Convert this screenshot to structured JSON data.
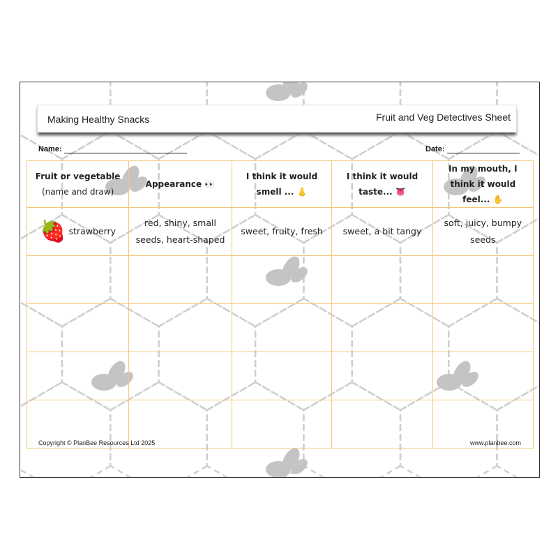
{
  "header": {
    "left_title": "Making Healthy Snacks",
    "right_title": "Fruit and Veg Detectives Sheet"
  },
  "fields": {
    "name_label": "Name:",
    "date_label": "Date:"
  },
  "table": {
    "columns": [
      {
        "label": "Fruit or vegetable",
        "sub": "(name and draw)"
      },
      {
        "label": "Appearance",
        "icon": "👀"
      },
      {
        "label": "I think it would smell ...",
        "icon": "👃"
      },
      {
        "label": "I think it would taste...",
        "icon": "👅"
      },
      {
        "label": "In my mouth, I think it would feel...",
        "icon": "✋"
      }
    ],
    "rows": [
      {
        "fruit": "strawberry",
        "fruit_icon": "🍓",
        "appearance": "red, shiny, small seeds, heart-shaped",
        "smell": "sweet, fruity, fresh",
        "taste": "sweet, a bit tangy",
        "feel": "soft, juicy, bumpy seeds"
      }
    ],
    "empty_rows": 4,
    "border_color": "#f2c77a"
  },
  "footer": {
    "copyright": "Copyright © PlanBee Resources Ltd 2025",
    "website": "www.planbee.com"
  }
}
